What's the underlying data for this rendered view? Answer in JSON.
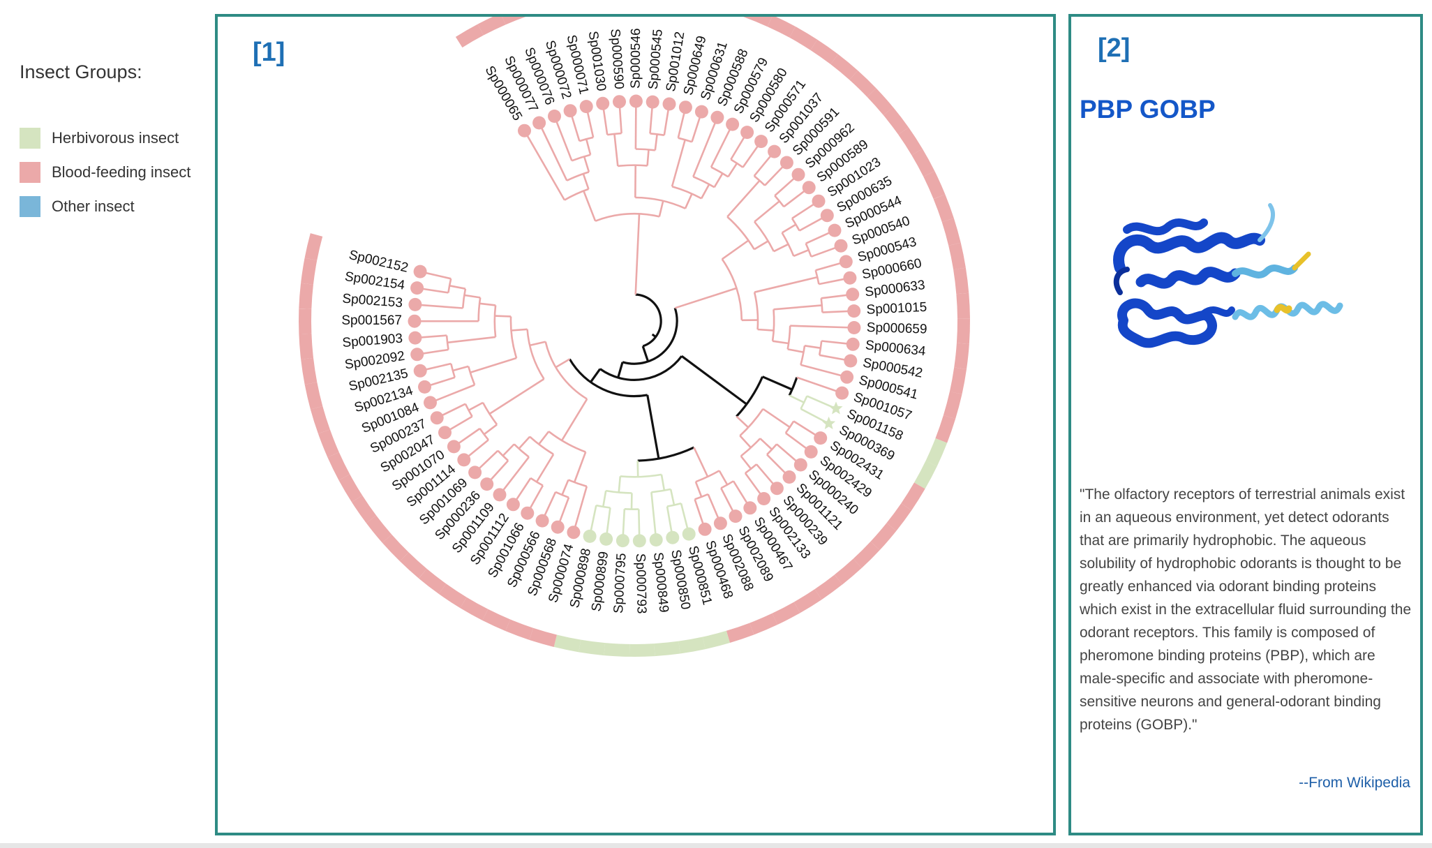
{
  "legend": {
    "title": "Insect Groups:",
    "items": [
      {
        "label": "Herbivorous insect",
        "color": "#d5e4c0"
      },
      {
        "label": "Blood-feeding insect",
        "color": "#eba9a9"
      },
      {
        "label": "Other insect",
        "color": "#7ab6d9"
      }
    ]
  },
  "panel1": {
    "number": "[1]",
    "leaves": [
      {
        "id": "Sp000065",
        "group": "blood"
      },
      {
        "id": "Sp000077",
        "group": "blood"
      },
      {
        "id": "Sp000076",
        "group": "blood"
      },
      {
        "id": "Sp000072",
        "group": "blood"
      },
      {
        "id": "Sp000071",
        "group": "blood"
      },
      {
        "id": "Sp001030",
        "group": "blood"
      },
      {
        "id": "Sp000590",
        "group": "blood"
      },
      {
        "id": "Sp000546",
        "group": "blood"
      },
      {
        "id": "Sp000545",
        "group": "blood"
      },
      {
        "id": "Sp001012",
        "group": "blood"
      },
      {
        "id": "Sp000649",
        "group": "blood"
      },
      {
        "id": "Sp000631",
        "group": "blood"
      },
      {
        "id": "Sp000588",
        "group": "blood"
      },
      {
        "id": "Sp000579",
        "group": "blood"
      },
      {
        "id": "Sp000580",
        "group": "blood"
      },
      {
        "id": "Sp000571",
        "group": "blood"
      },
      {
        "id": "Sp001037",
        "group": "blood"
      },
      {
        "id": "Sp000591",
        "group": "blood"
      },
      {
        "id": "Sp000962",
        "group": "blood"
      },
      {
        "id": "Sp000589",
        "group": "blood"
      },
      {
        "id": "Sp001023",
        "group": "blood"
      },
      {
        "id": "Sp000635",
        "group": "blood"
      },
      {
        "id": "Sp000544",
        "group": "blood"
      },
      {
        "id": "Sp000540",
        "group": "blood"
      },
      {
        "id": "Sp000543",
        "group": "blood"
      },
      {
        "id": "Sp000660",
        "group": "blood"
      },
      {
        "id": "Sp000633",
        "group": "blood"
      },
      {
        "id": "Sp001015",
        "group": "blood"
      },
      {
        "id": "Sp000659",
        "group": "blood"
      },
      {
        "id": "Sp000634",
        "group": "blood"
      },
      {
        "id": "Sp000542",
        "group": "blood"
      },
      {
        "id": "Sp000541",
        "group": "blood"
      },
      {
        "id": "Sp001057",
        "group": "blood"
      },
      {
        "id": "Sp001158",
        "group": "herb"
      },
      {
        "id": "Sp000369",
        "group": "herb"
      },
      {
        "id": "Sp002431",
        "group": "blood"
      },
      {
        "id": "Sp002429",
        "group": "blood"
      },
      {
        "id": "Sp000240",
        "group": "blood"
      },
      {
        "id": "Sp001121",
        "group": "blood"
      },
      {
        "id": "Sp000239",
        "group": "blood"
      },
      {
        "id": "Sp002133",
        "group": "blood"
      },
      {
        "id": "Sp000467",
        "group": "blood"
      },
      {
        "id": "Sp002089",
        "group": "blood"
      },
      {
        "id": "Sp002088",
        "group": "blood"
      },
      {
        "id": "Sp000468",
        "group": "blood"
      },
      {
        "id": "Sp000851",
        "group": "herb"
      },
      {
        "id": "Sp000850",
        "group": "herb"
      },
      {
        "id": "Sp000849",
        "group": "herb"
      },
      {
        "id": "Sp000793",
        "group": "herb"
      },
      {
        "id": "Sp000795",
        "group": "herb"
      },
      {
        "id": "Sp000899",
        "group": "herb"
      },
      {
        "id": "Sp000898",
        "group": "herb"
      },
      {
        "id": "Sp000074",
        "group": "blood"
      },
      {
        "id": "Sp000568",
        "group": "blood"
      },
      {
        "id": "Sp000566",
        "group": "blood"
      },
      {
        "id": "Sp001066",
        "group": "blood"
      },
      {
        "id": "Sp001112",
        "group": "blood"
      },
      {
        "id": "Sp001109",
        "group": "blood"
      },
      {
        "id": "Sp000236",
        "group": "blood"
      },
      {
        "id": "Sp001069",
        "group": "blood"
      },
      {
        "id": "Sp001114",
        "group": "blood"
      },
      {
        "id": "Sp001070",
        "group": "blood"
      },
      {
        "id": "Sp002047",
        "group": "blood"
      },
      {
        "id": "Sp000237",
        "group": "blood"
      },
      {
        "id": "Sp001084",
        "group": "blood"
      },
      {
        "id": "Sp002134",
        "group": "blood"
      },
      {
        "id": "Sp002135",
        "group": "blood"
      },
      {
        "id": "Sp002092",
        "group": "blood"
      },
      {
        "id": "Sp001903",
        "group": "blood"
      },
      {
        "id": "Sp001567",
        "group": "blood"
      },
      {
        "id": "Sp002153",
        "group": "blood"
      },
      {
        "id": "Sp002154",
        "group": "blood"
      },
      {
        "id": "Sp002152",
        "group": "blood"
      }
    ]
  },
  "panel2": {
    "number": "[2]",
    "title": "PBP GOBP",
    "quote": "\"The olfactory receptors of terrestrial animals exist in an aqueous environment, yet detect odorants that are primarily hydrophobic. The aqueous solubility of hydrophobic odorants is thought to be greatly enhanced via odorant binding proteins which exist in the extracellular fluid surrounding the odorant receptors. This family is composed of pheromone binding proteins (PBP), which are male-specific and associate with pheromone-sensitive neurons and general-odorant binding proteins (GOBP).\"",
    "source": "--From Wikipedia"
  }
}
